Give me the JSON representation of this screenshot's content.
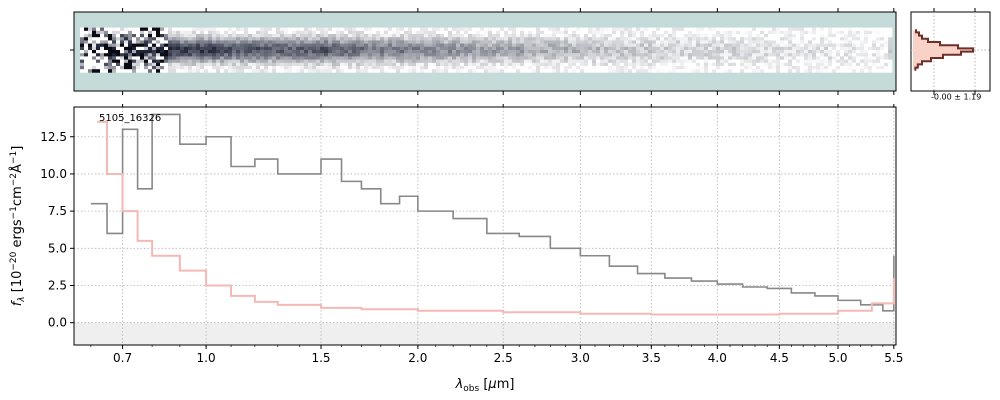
{
  "colors": {
    "spectrum": "#888888",
    "error": "#f4b9b4",
    "panel_bg": "#c5dbd9",
    "profile_fill": "#f8d2c6",
    "profile_line": "#6e2f26",
    "zero_band": "#e0e0e0",
    "grid": "#b4b4b4"
  },
  "chart_data": [
    {
      "type": "image",
      "panel": "2d-spectrum",
      "description_colors": [
        "#ffffff",
        "#c5dbd9",
        "#1a1a2e"
      ],
      "x_range": [
        0.6,
        5.5
      ]
    },
    {
      "type": "line",
      "panel": "spatial-profile",
      "annotation": "-0.00 ± 1.19",
      "profile_offsets": [
        -6,
        -5,
        -4,
        -3,
        -2,
        -1,
        0,
        1,
        2,
        3,
        4,
        5,
        6
      ],
      "profile_values": [
        0.05,
        0.1,
        0.15,
        0.25,
        0.45,
        0.75,
        1.0,
        0.8,
        0.5,
        0.3,
        0.15,
        0.08,
        0.04
      ]
    },
    {
      "type": "line",
      "panel": "1d-spectrum",
      "title": "5105_16326",
      "xlabel": "λ_obs [μm]",
      "ylabel": "f_λ [10^-20 ergs^-1 cm^-2 Å^-1]",
      "xlim": [
        0.55,
        5.52
      ],
      "ylim": [
        -1.5,
        14.5
      ],
      "x_scale": "sqrt",
      "x_ticks": [
        0.7,
        1.0,
        1.5,
        2.0,
        2.5,
        3.0,
        3.5,
        4.0,
        4.5,
        5.0,
        5.5
      ],
      "x_tick_labels": [
        "0.7",
        "1.0",
        "1.5",
        "2.0",
        "2.5",
        "3.0",
        "3.5",
        "4.0",
        "4.5",
        "5.0",
        "5.5"
      ],
      "x_tick_label_text": "0.7 1.0 1.5 2.0 2.5 3.0 3.5 4.0 4.5 5.0 5.5",
      "y_ticks": [
        0.0,
        2.5,
        5.0,
        7.5,
        10.0,
        12.5
      ],
      "y_tick_labels": [
        "0.0",
        "2.5",
        "5.0",
        "7.5",
        "10.0",
        "12.5"
      ],
      "y_tick_label_text": "0.0 2.5 5.0 7.5 10.0 12.5",
      "grid": true,
      "series": [
        {
          "role": "flux",
          "x": [
            0.6,
            0.65,
            0.7,
            0.75,
            0.8,
            0.9,
            1.0,
            1.1,
            1.2,
            1.3,
            1.4,
            1.5,
            1.6,
            1.7,
            1.8,
            1.9,
            2.0,
            2.2,
            2.4,
            2.6,
            2.8,
            3.0,
            3.2,
            3.4,
            3.6,
            3.8,
            4.0,
            4.2,
            4.4,
            4.6,
            4.8,
            5.0,
            5.2,
            5.4,
            5.5
          ],
          "y": [
            8.0,
            6.0,
            13.0,
            9.0,
            14.0,
            12.0,
            12.5,
            10.5,
            11.0,
            10.0,
            10.0,
            11.0,
            9.5,
            9.0,
            8.0,
            8.5,
            7.5,
            7.0,
            6.0,
            5.8,
            5.0,
            4.5,
            3.8,
            3.3,
            3.0,
            2.8,
            2.6,
            2.4,
            2.3,
            2.0,
            1.8,
            1.5,
            1.2,
            0.8,
            4.5
          ]
        },
        {
          "role": "error",
          "x": [
            0.62,
            0.65,
            0.7,
            0.75,
            0.8,
            0.9,
            1.0,
            1.1,
            1.2,
            1.3,
            1.5,
            1.7,
            2.0,
            2.5,
            3.0,
            3.5,
            4.0,
            4.5,
            5.0,
            5.3,
            5.5
          ],
          "y": [
            13.5,
            10.0,
            7.5,
            5.5,
            4.5,
            3.5,
            2.5,
            1.8,
            1.4,
            1.2,
            1.0,
            0.9,
            0.8,
            0.7,
            0.6,
            0.55,
            0.55,
            0.6,
            0.8,
            1.3,
            3.0
          ]
        }
      ]
    }
  ]
}
